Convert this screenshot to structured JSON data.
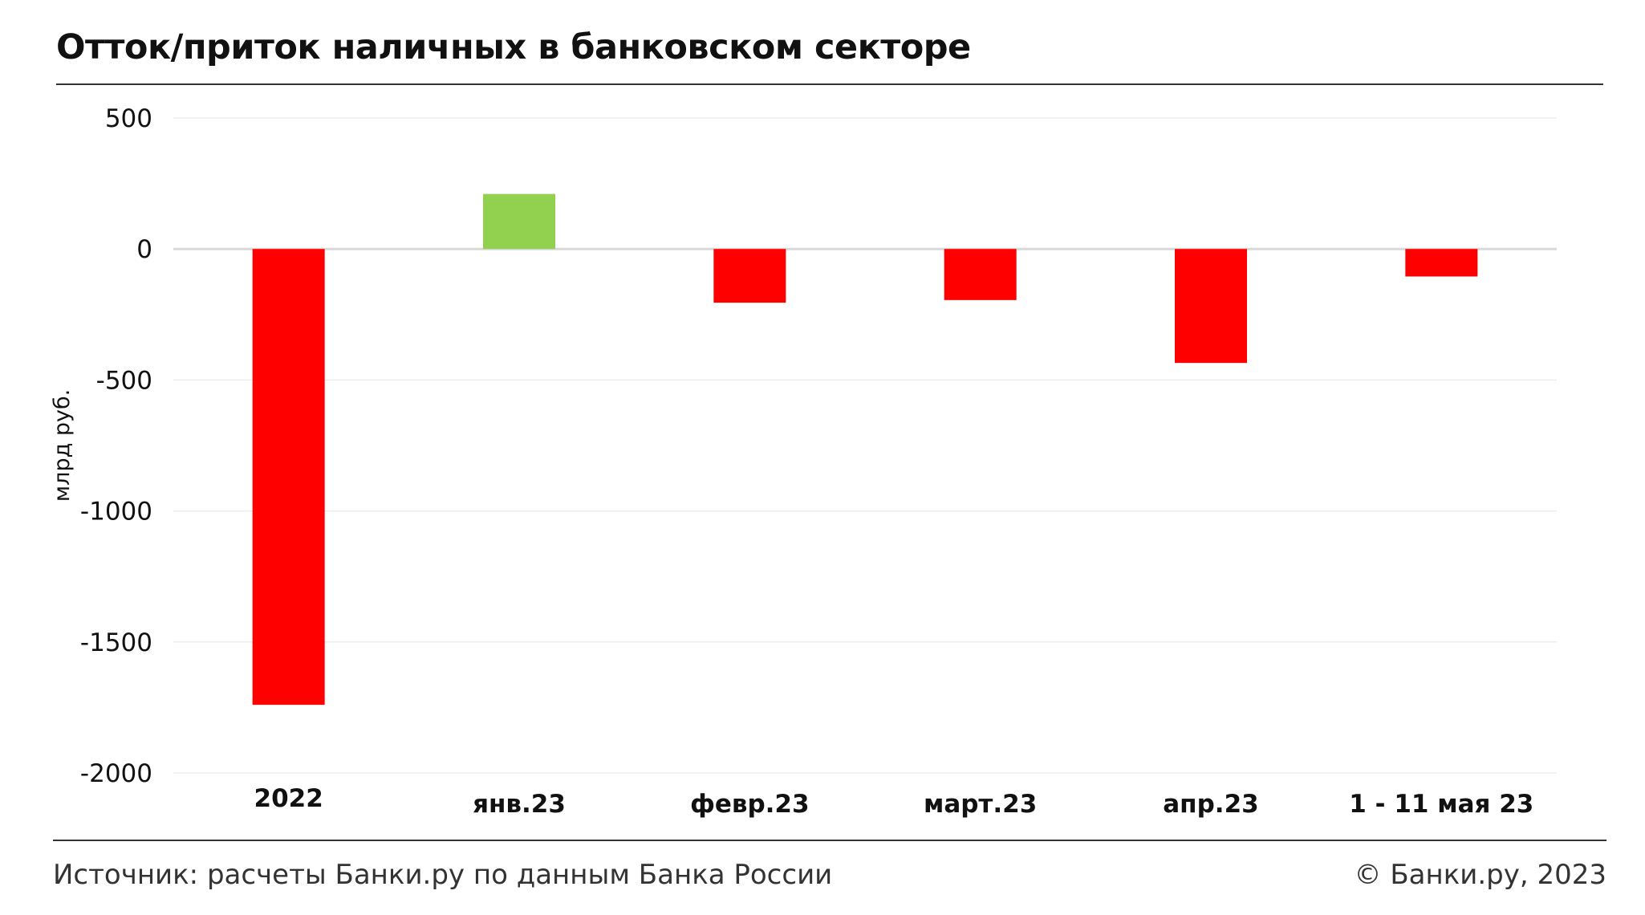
{
  "page": {
    "title": "Отток/приток наличных в банковском секторе",
    "source": "Источник: расчеты Банки.ру по данным Банка России",
    "copyright": "© Банки.ру, 2023"
  },
  "chart_data": {
    "type": "bar",
    "ylabel": "млрд руб.",
    "ylim": [
      -2000,
      500
    ],
    "yticks": [
      500,
      0,
      -500,
      -1000,
      -1500,
      -2000
    ],
    "grid": true,
    "categories": [
      "2022",
      "янв.23",
      "февр.23",
      "март.23",
      "апр.23",
      "1 - 11 мая 23"
    ],
    "values": [
      -1740,
      210,
      -205,
      -195,
      -435,
      -105
    ],
    "colors": {
      "positive": "#92d050",
      "negative": "#ff0000",
      "grid": "#eeeeee",
      "zero_line": "#d9d9d9"
    }
  }
}
